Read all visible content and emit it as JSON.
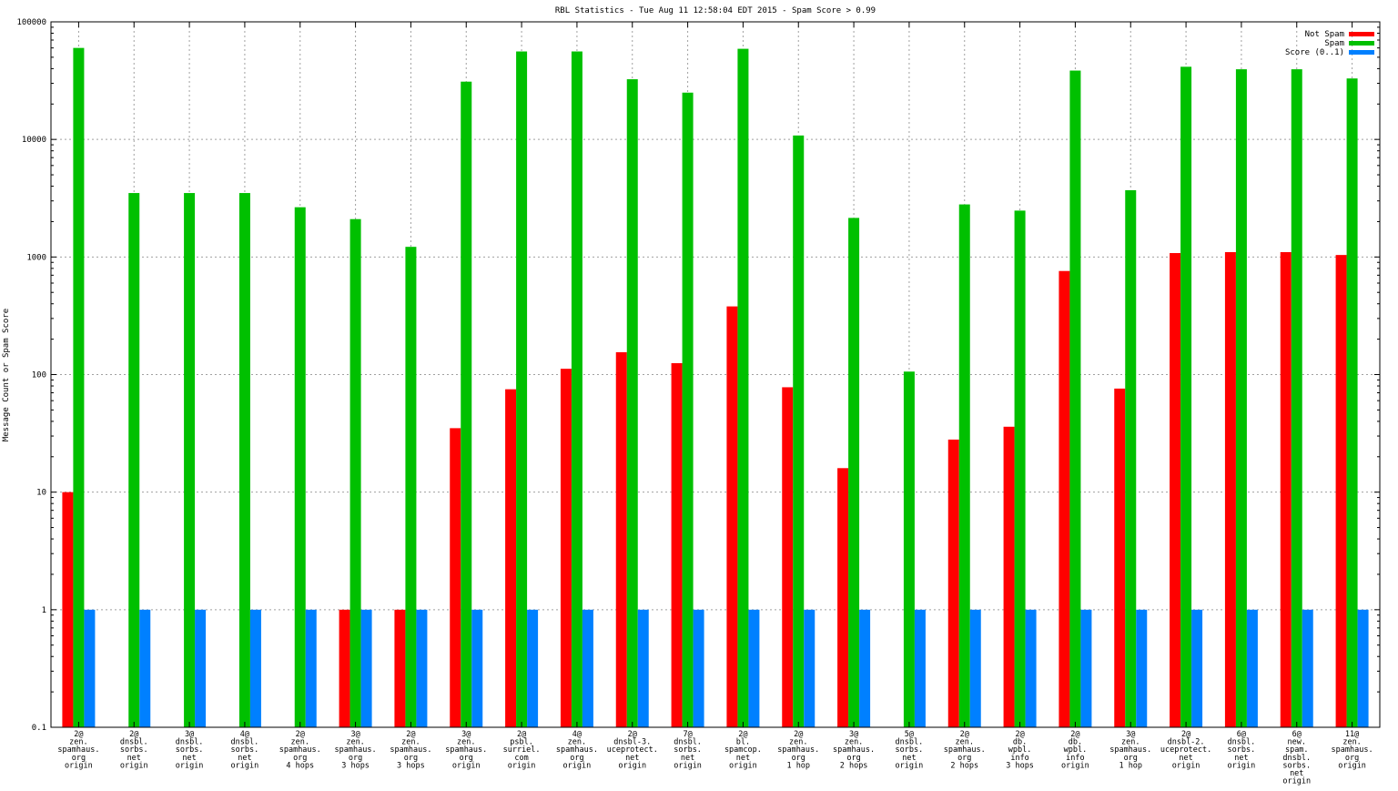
{
  "chart_data": {
    "type": "bar",
    "title": "RBL Statistics - Tue Aug 11 12:58:04 EDT 2015 - Spam Score > 0.99",
    "ylabel": "Message Count or Spam Score",
    "xlabel": "",
    "yscale": "log",
    "ylim": [
      0.1,
      100000
    ],
    "yticks": [
      "0.1",
      "1",
      "10",
      "100",
      "1000",
      "10000",
      "100000"
    ],
    "grid": true,
    "legend_position": "top-right",
    "categories": [
      [
        "2@",
        "zen.",
        "spamhaus.",
        "org",
        "origin"
      ],
      [
        "2@",
        "dnsbl.",
        "sorbs.",
        "net",
        "origin"
      ],
      [
        "3@",
        "dnsbl.",
        "sorbs.",
        "net",
        "origin"
      ],
      [
        "4@",
        "dnsbl.",
        "sorbs.",
        "net",
        "origin"
      ],
      [
        "2@",
        "zen.",
        "spamhaus.",
        "org",
        "4 hops"
      ],
      [
        "3@",
        "zen.",
        "spamhaus.",
        "org",
        "3 hops"
      ],
      [
        "2@",
        "zen.",
        "spamhaus.",
        "org",
        "3 hops"
      ],
      [
        "3@",
        "zen.",
        "spamhaus.",
        "org",
        "origin"
      ],
      [
        "2@",
        "psbl.",
        "surriel.",
        "com",
        "origin"
      ],
      [
        "4@",
        "zen.",
        "spamhaus.",
        "org",
        "origin"
      ],
      [
        "2@",
        "dnsbl-3.",
        "uceprotect.",
        "net",
        "origin"
      ],
      [
        "7@",
        "dnsbl.",
        "sorbs.",
        "net",
        "origin"
      ],
      [
        "2@",
        "bl.",
        "spamcop.",
        "net",
        "origin"
      ],
      [
        "2@",
        "zen.",
        "spamhaus.",
        "org",
        "1 hop"
      ],
      [
        "3@",
        "zen.",
        "spamhaus.",
        "org",
        "2 hops"
      ],
      [
        "5@",
        "dnsbl.",
        "sorbs.",
        "net",
        "origin"
      ],
      [
        "2@",
        "zen.",
        "spamhaus.",
        "org",
        "2 hops"
      ],
      [
        "2@",
        "db.",
        "wpbl.",
        "info",
        "3 hops"
      ],
      [
        "2@",
        "db.",
        "wpbl.",
        "info",
        "origin"
      ],
      [
        "3@",
        "zen.",
        "spamhaus.",
        "org",
        "1 hop"
      ],
      [
        "2@",
        "dnsbl-2.",
        "uceprotect.",
        "net",
        "origin"
      ],
      [
        "6@",
        "dnsbl.",
        "sorbs.",
        "net",
        "origin"
      ],
      [
        "6@",
        "new.",
        "spam.",
        "dnsbl.",
        "sorbs.",
        "net",
        "origin"
      ],
      [
        "11@",
        "zen.",
        "spamhaus.",
        "org",
        "origin"
      ]
    ],
    "series": [
      {
        "name": "Not Spam",
        "color": "#ff0000",
        "values": [
          10,
          0,
          0,
          0,
          0,
          1,
          1,
          35,
          75,
          112,
          155,
          125,
          380,
          78,
          16,
          0,
          28,
          36,
          760,
          76,
          1080,
          1100,
          1100,
          1040
        ]
      },
      {
        "name": "Spam",
        "color": "#00c000",
        "values": [
          60000,
          3500,
          3500,
          3500,
          2650,
          2100,
          1220,
          31000,
          56000,
          56000,
          32500,
          25000,
          59000,
          10800,
          2150,
          106,
          2800,
          2480,
          38500,
          3700,
          41500,
          39500,
          39500,
          33000
        ]
      },
      {
        "name": "Score (0..1)",
        "color": "#0080ff",
        "values": [
          1,
          1,
          1,
          1,
          1,
          1,
          1,
          1,
          1,
          1,
          1,
          1,
          1,
          1,
          1,
          1,
          1,
          1,
          1,
          1,
          1,
          1,
          1,
          1
        ]
      }
    ]
  }
}
